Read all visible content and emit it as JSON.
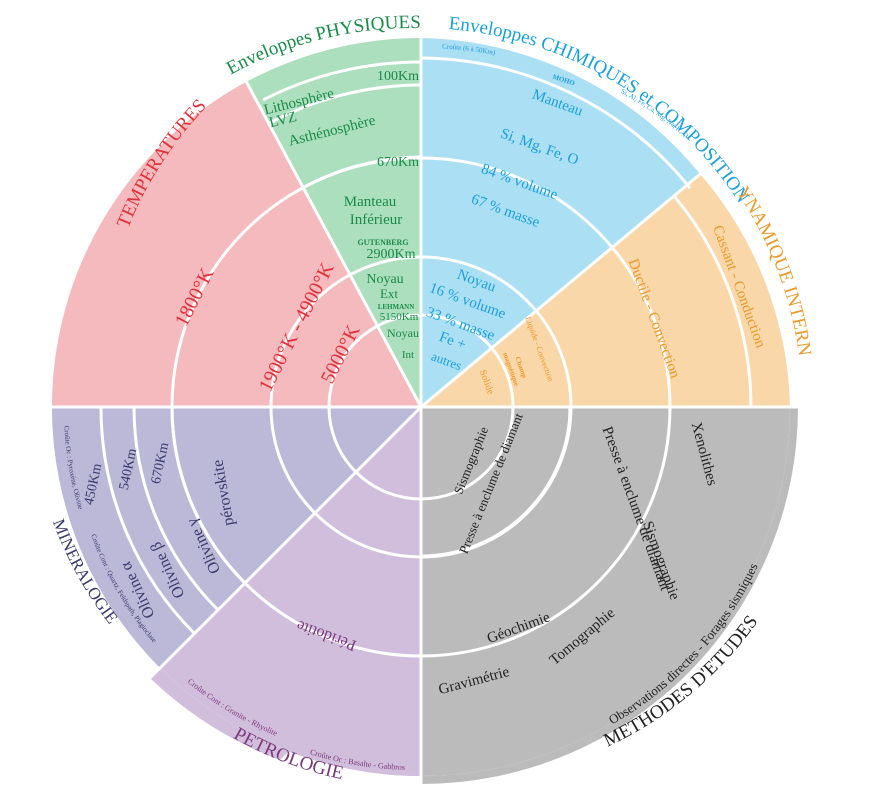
{
  "diagram": {
    "colors": {
      "temperatures": "#f4babd",
      "physiques": "#abdfbd",
      "chimiques": "#abdff4",
      "dynamique": "#fad7a9",
      "methodes": "#bbbbbb",
      "petrologie": "#d1bedd",
      "mineralogie": "#bcb8d8",
      "temperatures_text": "#e0303a",
      "physiques_text": "#1a8a4a",
      "chimiques_text": "#1aa0d8",
      "dynamique_text": "#e89a2a",
      "methodes_text": "#222222",
      "petrologie_text": "#7a3a7a",
      "mineralogie_text": "#3a3a6a"
    },
    "sectors": {
      "temperatures": {
        "title": "TEMPERATURES",
        "t1": "1800°K",
        "t2": "1900°K - 4900°K",
        "t3": "5000°K"
      },
      "physiques": {
        "title": "Enveloppes PHYSIQUES",
        "lithosphere": "Lithosphère",
        "lvz": "LVZ",
        "asthenosphere": "Asthénosphère",
        "d100": "100Km",
        "d670": "670Km",
        "manteau": "Manteau",
        "inferieur": "Inférieur",
        "gutenberg": "GUTENBERG",
        "d2900": "2900Km",
        "noyau_ext_1": "Noyau",
        "noyau_ext_2": "Ext",
        "lehmann": "LEHMANN",
        "d5150": "5150Km",
        "noyau_int_1": "Noyau",
        "noyau_int_2": "Int"
      },
      "chimiques": {
        "title": "Enveloppes CHIMIQUES et COMPOSITION",
        "croute": "Croûte (6 à 50Km)",
        "moho": "MOHO",
        "croute_elements": "Si, Al, Fe, Ca, Mg, Na, K, O",
        "manteau": "Manteau",
        "manteau_elements": "Si, Mg, Fe, O",
        "manteau_volume": "84 % volume",
        "manteau_masse": "67 % masse",
        "noyau": "Noyau",
        "noyau_volume": "16 % volume",
        "noyau_masse": "33 % masse",
        "noyau_fe": "Fe   +",
        "noyau_autres": "autres"
      },
      "dynamique": {
        "title": "DYNAMIQUE INTERNE",
        "cassant": "Cassant - Conduction",
        "ductile": "Ductile - Convection",
        "liquide": "Liquide - Convection",
        "champ_1": "Champ",
        "champ_2": "magnétique",
        "solide": "Solide"
      },
      "methodes": {
        "title": "METHODES D'ETUDES",
        "observations": "Observations directes - Forages sismiques",
        "xenolithes": "Xenolithes",
        "presse_1": "Presse à enclume de diamant",
        "sismographie_1": "Sismographie",
        "tomographie": "Tomographie",
        "geochimie": "Géochimie",
        "gravimetrie": "Gravimétrie",
        "presse_2": "Presse à enclume de diamant",
        "sismographie_2": "Sismographie"
      },
      "petrologie": {
        "title": "PETROLOGIE",
        "peridotite": "Péridotite",
        "croute_cont": "Croûte Cont : Granite - Rhyolite",
        "croute_oc": "Croûte Oc : Basalte - Gabbros"
      },
      "mineralogie": {
        "title": "MINERALOGIE",
        "croute_oc": "Croûte Oc : Pyroxène, Olivine",
        "croute_cont": "Croûte Cont : Quartz, Feldspath, Plagioclase",
        "d450": "450Km",
        "d540": "540Km",
        "d670": "670Km",
        "olivine_a": "Olivine α",
        "olivine_b": "Olivine β",
        "olivine_g": "Olivine γ",
        "perovskite": "pérovskite"
      }
    }
  }
}
